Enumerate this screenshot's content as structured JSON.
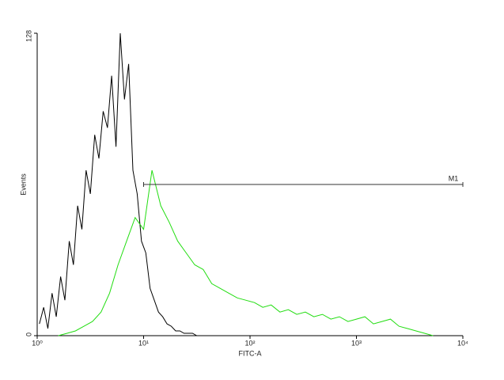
{
  "chart_data": {
    "type": "line",
    "log_x": true,
    "x_label": "FITC-A",
    "y_label": "Events",
    "xlim": [
      1,
      10000
    ],
    "xticks": [
      {
        "value": 1,
        "label": "10⁰"
      },
      {
        "value": 10,
        "label": "10¹"
      },
      {
        "value": 100,
        "label": "10²"
      },
      {
        "value": 1000,
        "label": "10³"
      },
      {
        "value": 10000,
        "label": "10⁴"
      }
    ],
    "ylim": [
      0,
      128
    ],
    "yticks": [
      0,
      128
    ],
    "series": [
      {
        "color": "#000000",
        "x": [
          1.05,
          1.15,
          1.26,
          1.38,
          1.51,
          1.66,
          1.82,
          2.0,
          2.19,
          2.4,
          2.63,
          2.88,
          3.16,
          3.47,
          3.8,
          4.17,
          4.57,
          5.01,
          5.5,
          6.03,
          6.61,
          7.24,
          7.94,
          8.71,
          9.55,
          10.5,
          11.5,
          12.6,
          13.8,
          15.1,
          16.6,
          18.2,
          20.0,
          21.9,
          24.0,
          26.3,
          28.8,
          31.6,
          34.7,
          38.0
        ],
        "values": [
          5,
          12,
          3,
          18,
          8,
          25,
          15,
          40,
          30,
          55,
          45,
          70,
          60,
          85,
          75,
          95,
          88,
          110,
          80,
          128,
          100,
          115,
          70,
          60,
          40,
          35,
          20,
          15,
          10,
          8,
          5,
          4,
          2,
          2,
          1,
          1,
          1,
          0,
          0,
          0
        ]
      },
      {
        "color": "#22dd11",
        "x": [
          1.58,
          1.91,
          2.29,
          2.75,
          3.31,
          3.98,
          4.79,
          5.75,
          6.92,
          8.32,
          10,
          12.0,
          14.5,
          17.4,
          20.9,
          25.1,
          30.2,
          36.3,
          43.7,
          52.5,
          63.1,
          75.9,
          91.2,
          110,
          132,
          158,
          191,
          229,
          275,
          331,
          398,
          479,
          575,
          692,
          832,
          1000,
          1202,
          1445,
          1738,
          2089,
          2512,
          3020,
          3631,
          4365,
          5248
        ],
        "values": [
          0,
          1,
          2,
          4,
          6,
          10,
          18,
          30,
          40,
          50,
          45,
          70,
          55,
          48,
          40,
          35,
          30,
          28,
          22,
          20,
          18,
          16,
          15,
          14,
          12,
          13,
          10,
          11,
          9,
          10,
          8,
          9,
          7,
          8,
          6,
          7,
          8,
          5,
          6,
          7,
          4,
          3,
          2,
          1,
          0
        ]
      }
    ],
    "markers": [
      {
        "label": "M1",
        "x": [
          10,
          10000
        ],
        "y": 64
      }
    ]
  }
}
